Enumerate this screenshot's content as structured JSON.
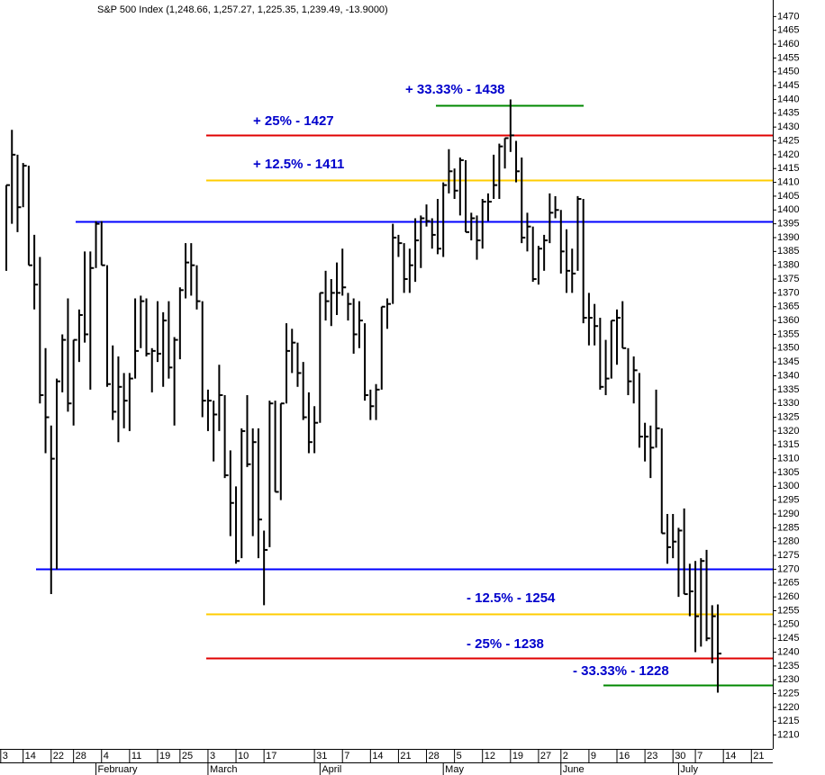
{
  "chart_data": {
    "type": "hlc",
    "title": "S&P 500 Index (1,248.66, 1,257.27, 1,225.35, 1,239.49, -13.9000)",
    "color": "#000000",
    "categories": [
      "3",
      null,
      null,
      null,
      "14",
      null,
      null,
      null,
      null,
      "22",
      null,
      null,
      null,
      "28",
      null,
      null,
      null,
      null,
      "4",
      null,
      null,
      null,
      null,
      "11",
      null,
      null,
      null,
      null,
      "19",
      null,
      null,
      null,
      "25",
      null,
      null,
      null,
      null,
      "3",
      null,
      null,
      null,
      null,
      "10",
      null,
      null,
      null,
      null,
      "17",
      null,
      null,
      null,
      null,
      null,
      null,
      null,
      null,
      "31",
      null,
      null,
      null,
      null,
      "7",
      null,
      null,
      null,
      null,
      "14",
      null,
      null,
      null,
      null,
      "21",
      null,
      null,
      null,
      null,
      "28",
      null,
      null,
      null,
      null,
      "5",
      null,
      null,
      null,
      null,
      "12",
      null,
      null,
      null,
      null,
      "19",
      null,
      null,
      null,
      null,
      "27",
      null,
      null,
      null,
      "2",
      null,
      null,
      null,
      null,
      "9",
      null,
      null,
      null,
      null,
      "16",
      null,
      null,
      null,
      null,
      "23",
      null,
      null,
      null,
      null,
      "30",
      null,
      null,
      null,
      "7",
      null,
      null,
      null,
      null,
      "14",
      null,
      null,
      null,
      null,
      "21",
      null,
      null,
      null
    ],
    "months": [
      null,
      null,
      null,
      null,
      null,
      null,
      null,
      null,
      null,
      null,
      null,
      null,
      null,
      null,
      null,
      null,
      null,
      "February",
      null,
      null,
      null,
      null,
      null,
      null,
      null,
      null,
      null,
      null,
      null,
      null,
      null,
      null,
      null,
      null,
      null,
      null,
      null,
      "March",
      null,
      null,
      null,
      null,
      null,
      null,
      null,
      null,
      null,
      null,
      null,
      null,
      null,
      null,
      null,
      null,
      null,
      null,
      null,
      "April",
      null,
      null,
      null,
      null,
      null,
      null,
      null,
      null,
      null,
      null,
      null,
      null,
      null,
      null,
      null,
      null,
      null,
      null,
      null,
      null,
      null,
      "May",
      null,
      null,
      null,
      null,
      null,
      null,
      null,
      null,
      null,
      null,
      null,
      null,
      null,
      null,
      null,
      null,
      null,
      null,
      null,
      null,
      "June",
      null,
      null,
      null,
      null,
      null,
      null,
      null,
      null,
      null,
      null,
      null,
      null,
      null,
      null,
      null,
      null,
      null,
      null,
      null,
      null,
      "July",
      null,
      null,
      null,
      null,
      null,
      null,
      null,
      null,
      null,
      null,
      null,
      null,
      null,
      null,
      null,
      null
    ],
    "high": [
      null,
      1409,
      1429,
      1420,
      1417,
      1416,
      1391,
      1383,
      1350,
      1322,
      1339,
      1355,
      1368,
      1353,
      1364,
      1385,
      1385,
      1396,
      1396,
      1380,
      1351,
      1347,
      1341,
      1341,
      1368,
      1369,
      1368,
      1350,
      1367,
      1363,
      1367,
      1354,
      1372,
      1388,
      1388,
      1380,
      1367,
      1335,
      1331,
      1344,
      1333,
      1313,
      1300,
      1321,
      1333,
      1321,
      1321,
      1284,
      1331,
      1331,
      1330,
      1359,
      1357,
      1352,
      1345,
      1334,
      1329,
      1370,
      1378,
      1375,
      1381,
      1386,
      1370,
      1368,
      1367,
      1359,
      1335,
      1337,
      1365,
      1368,
      1395,
      1391,
      1388,
      1386,
      1397,
      1398,
      1402,
      1397,
      1404,
      1410,
      1422,
      1415,
      1419,
      1418,
      1399,
      1398,
      1404,
      1406,
      1420,
      1424,
      1426,
      1440,
      1425,
      1419,
      1399,
      1394,
      1387,
      1391,
      1406,
      1405,
      1400,
      1393,
      1386,
      1405,
      1404,
      1370,
      1366,
      1361,
      1353,
      1360,
      1364,
      1367,
      1350,
      1347,
      1341,
      1323,
      1322,
      1335,
      1321,
      1290,
      1290,
      1285,
      1292,
      1272,
      1273,
      1274,
      1277,
      1257,
      1257.27,
      null,
      null,
      null,
      null,
      null,
      null,
      null,
      null,
      null
    ],
    "low": [
      null,
      1378,
      1395,
      1392,
      1401,
      1380,
      1364,
      1330,
      1312,
      1261,
      1270,
      1334,
      1327,
      1322,
      1345,
      1352,
      1335,
      1379,
      1380,
      1336,
      1324,
      1316,
      1321,
      1320,
      1339,
      1350,
      1347,
      1334,
      1345,
      1336,
      1339,
      1322,
      1346,
      1368,
      1369,
      1364,
      1325,
      1320,
      1309,
      1320,
      1303,
      1282,
      1272,
      1274,
      1307,
      1282,
      1274,
      1257,
      1278,
      1298,
      1295,
      1330,
      1341,
      1336,
      1324,
      1312,
      1312,
      1323,
      1360,
      1358,
      1362,
      1369,
      1360,
      1348,
      1350,
      1331,
      1324,
      1324,
      1335,
      1357,
      1366,
      1383,
      1370,
      1370,
      1374,
      1379,
      1394,
      1386,
      1384,
      1383,
      1406,
      1404,
      1398,
      1392,
      1389,
      1382,
      1386,
      1396,
      1404,
      1404,
      1415,
      1421,
      1410,
      1388,
      1385,
      1374,
      1373,
      1378,
      1388,
      1397,
      1377,
      1370,
      1370,
      1378,
      1359,
      1351,
      1351,
      1335,
      1333,
      1339,
      1344,
      1350,
      1333,
      1330,
      1314,
      1309,
      1303,
      1314,
      1283,
      1272,
      1274,
      1260,
      1261,
      1253,
      1240,
      1242,
      1244,
      1236,
      1225.35,
      null,
      null,
      null,
      null,
      null,
      null,
      null,
      null,
      null
    ],
    "close": [
      null,
      1409,
      1420,
      1401,
      1416,
      1380,
      1373,
      1333,
      1325,
      1310,
      1338,
      1353,
      1330,
      1353,
      1362,
      1355,
      1379,
      1395,
      1380,
      1337,
      1327,
      1336,
      1331,
      1339,
      1349,
      1367,
      1348,
      1349,
      1348,
      1360,
      1343,
      1353,
      1371,
      1381,
      1380,
      1367,
      1331,
      1331,
      1326,
      1333,
      1304,
      1294,
      1273,
      1320,
      1308,
      1316,
      1288,
      1277,
      1330,
      1298,
      1330,
      1349,
      1352,
      1341,
      1325,
      1316,
      1323,
      1370,
      1367,
      1370,
      1370,
      1372,
      1366,
      1355,
      1360,
      1333,
      1329,
      1335,
      1365,
      1366,
      1390,
      1388,
      1375,
      1380,
      1389,
      1397,
      1396,
      1391,
      1386,
      1409,
      1414,
      1407,
      1418,
      1392,
      1397,
      1389,
      1403,
      1403,
      1409,
      1423,
      1426,
      1427,
      1414,
      1390,
      1394,
      1375,
      1386,
      1389,
      1399,
      1400,
      1385,
      1378,
      1377,
      1404,
      1361,
      1361,
      1358,
      1336,
      1339,
      1360,
      1361,
      1350,
      1338,
      1342,
      1318,
      1318,
      1314,
      1321,
      1283,
      1278,
      1280,
      1284,
      1261,
      1262,
      1253,
      1273,
      1245,
      1253,
      1239.49,
      null,
      null,
      null,
      null,
      null,
      null,
      null,
      null,
      null
    ],
    "levels": [
      {
        "label": "+ 33.33% - 1438",
        "value": 1438,
        "color": "#008800"
      },
      {
        "label": "+ 25% - 1427",
        "value": 1427,
        "color": "#e00000"
      },
      {
        "label": "+ 12.5% - 1411",
        "value": 1411,
        "color": "#ffcc00"
      },
      {
        "value": 1396,
        "color": "#0000ff"
      },
      {
        "value": 1270,
        "color": "#0000ff"
      },
      {
        "label": "- 12.5% - 1254",
        "value": 1254,
        "color": "#ffcc00"
      },
      {
        "label": "- 25% - 1238",
        "value": 1238,
        "color": "#e00000"
      },
      {
        "label": "- 33.33% - 1228",
        "value": 1228,
        "color": "#008800"
      }
    ],
    "level_label_color": "#0000cc",
    "ylim": [
      1205,
      1475
    ],
    "yticks": [
      1210,
      1215,
      1220,
      1225,
      1230,
      1235,
      1240,
      1245,
      1250,
      1255,
      1260,
      1265,
      1270,
      1275,
      1280,
      1285,
      1290,
      1295,
      1300,
      1305,
      1310,
      1315,
      1320,
      1325,
      1330,
      1335,
      1340,
      1345,
      1350,
      1355,
      1360,
      1365,
      1370,
      1375,
      1380,
      1385,
      1390,
      1395,
      1400,
      1405,
      1410,
      1415,
      1420,
      1425,
      1430,
      1435,
      1440,
      1445,
      1450,
      1455,
      1460,
      1465,
      1470
    ]
  }
}
